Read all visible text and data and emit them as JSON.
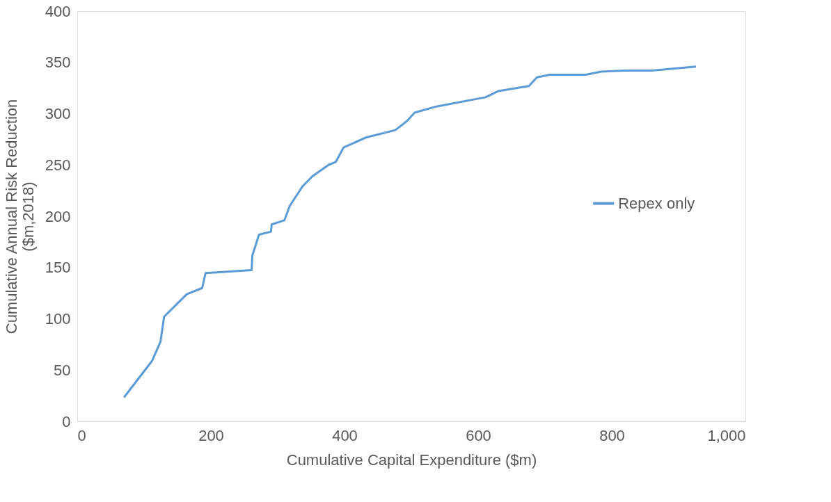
{
  "chart_data": {
    "type": "line",
    "xlabel": "Cumulative Capital Expenditure ($m)",
    "ylabel": "Cumulative Annual Risk Reduction ($m,2018)",
    "x": [
      70,
      112,
      124.5,
      130,
      164,
      187,
      192,
      261,
      262,
      272,
      290,
      291,
      310,
      318,
      337,
      352,
      376,
      387,
      398.5,
      433,
      476,
      493,
      505,
      537.5,
      611,
      630,
      676,
      688,
      707,
      761,
      784,
      820,
      860,
      926
    ],
    "series": [
      {
        "name": "Repex only",
        "color": "#5b9bd5",
        "values": [
          23.4,
          59,
          77.5,
          102,
          124,
          130,
          144.5,
          147.4,
          161.5,
          182,
          185,
          192,
          196,
          210,
          229,
          239,
          250,
          253,
          267,
          277,
          284,
          292.5,
          301,
          307,
          316,
          322,
          327,
          335.4,
          338,
          338,
          341,
          342,
          342,
          346
        ]
      }
    ],
    "xlim": [
      0,
      1000
    ],
    "xticks": [
      0,
      200,
      400,
      600,
      800,
      {
        "value": 1000,
        "label": "1,000"
      }
    ],
    "ylim": [
      0,
      400
    ],
    "yticks": [
      0,
      50,
      100,
      150,
      200,
      250,
      300,
      350,
      400
    ],
    "grid": false,
    "legend": "right",
    "marker": "none",
    "line_style": "solid"
  }
}
